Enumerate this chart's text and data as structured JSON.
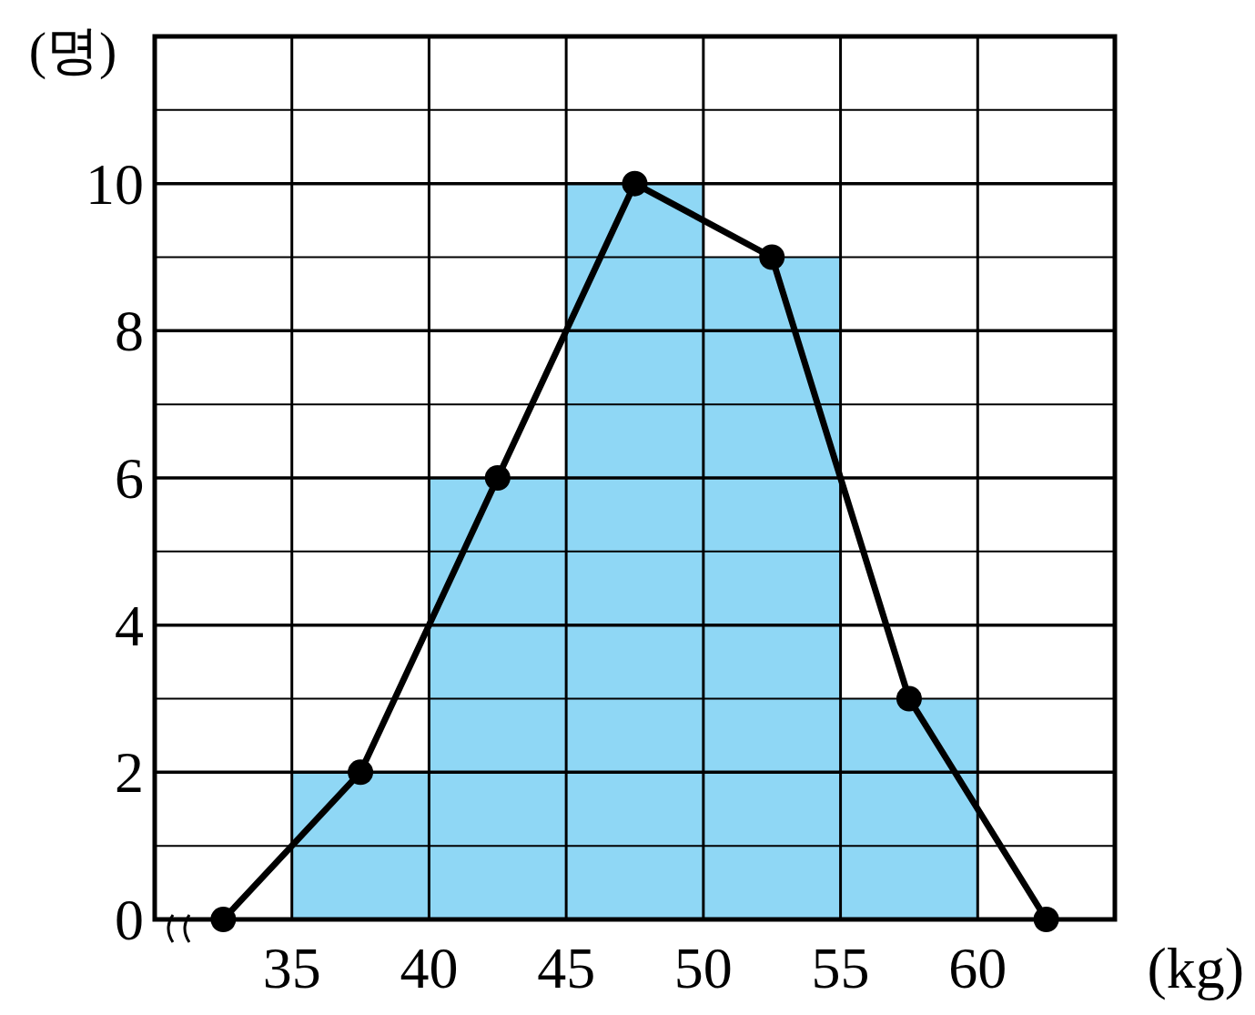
{
  "chart_data": {
    "type": "histogram",
    "xlabel": "(kg)",
    "ylabel": "(명)",
    "series": [
      {
        "bins": [
          35,
          40,
          45,
          50,
          55,
          60
        ],
        "values": [
          2,
          6,
          10,
          9,
          3
        ],
        "color": "#8fd7f5"
      },
      {
        "type": "line",
        "x": [
          32.5,
          37.5,
          42.5,
          47.5,
          52.5,
          57.5,
          62.5
        ],
        "values": [
          0,
          2,
          6,
          10,
          9,
          3,
          0
        ],
        "color": "#000000"
      }
    ],
    "marker": "circle",
    "grid": true,
    "xlim": [
      30,
      65
    ],
    "xticks": [
      {
        "value": 30,
        "label": null
      },
      35,
      40,
      45,
      50,
      55,
      60,
      {
        "value": 65,
        "label": null
      }
    ],
    "ylim": [
      0,
      12
    ],
    "yticks": [
      0,
      {
        "value": 1,
        "label": null
      },
      2,
      {
        "value": 3,
        "label": null
      },
      4,
      {
        "value": 5,
        "label": null
      },
      6,
      {
        "value": 7,
        "label": null
      },
      8,
      {
        "value": 9,
        "label": null
      },
      10,
      {
        "value": 11,
        "label": null
      },
      {
        "value": 12,
        "label": null
      }
    ]
  }
}
